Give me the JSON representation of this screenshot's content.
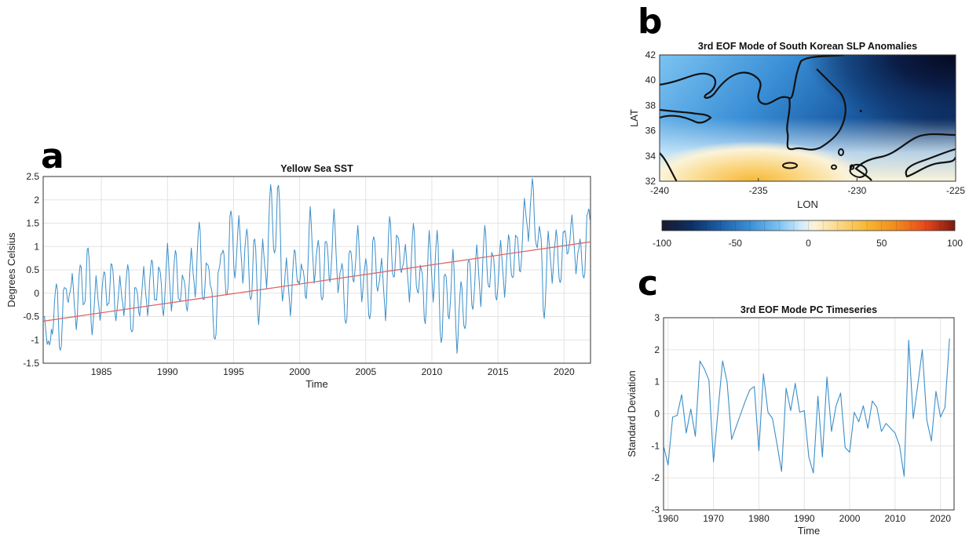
{
  "panels": {
    "a": "a",
    "b": "b",
    "c": "c"
  },
  "chart_data": [
    {
      "type": "line",
      "panel": "a",
      "title": "Yellow Sea SST",
      "xlabel": "Time",
      "ylabel": "Degrees Celsius",
      "xlim": [
        1980.6,
        2022.0
      ],
      "ylim": [
        -1.5,
        2.5
      ],
      "xticks": [
        1985,
        1990,
        1995,
        2000,
        2005,
        2010,
        2015,
        2020
      ],
      "yticks": [
        -1.5,
        -1,
        -0.5,
        0,
        0.5,
        1,
        1.5,
        2,
        2.5
      ],
      "grid": true,
      "colors": {
        "series": "#3b8fc9",
        "trend": "#e06666"
      },
      "trend": {
        "x": [
          1980.6,
          2022.0
        ],
        "y": [
          -0.6,
          1.1
        ]
      },
      "anchors": [
        [
          1980.6,
          -0.5
        ],
        [
          1981.0,
          -1.1
        ],
        [
          1981.3,
          -0.8
        ],
        [
          1981.6,
          0.2
        ],
        [
          1981.9,
          -1.3
        ],
        [
          1982.2,
          0.2
        ],
        [
          1982.5,
          -0.2
        ],
        [
          1982.8,
          0.35
        ],
        [
          1983.1,
          -0.7
        ],
        [
          1983.4,
          0.6
        ],
        [
          1983.7,
          -0.3
        ],
        [
          1984.0,
          1.05
        ],
        [
          1984.3,
          -0.9
        ],
        [
          1984.6,
          0.3
        ],
        [
          1984.9,
          -0.5
        ],
        [
          1985.2,
          0.45
        ],
        [
          1985.5,
          -0.3
        ],
        [
          1985.8,
          0.7
        ],
        [
          1986.1,
          -0.6
        ],
        [
          1986.4,
          0.3
        ],
        [
          1986.7,
          -0.4
        ],
        [
          1987.0,
          0.6
        ],
        [
          1987.3,
          -0.9
        ],
        [
          1987.6,
          0.2
        ],
        [
          1987.9,
          -0.5
        ],
        [
          1988.2,
          0.5
        ],
        [
          1988.5,
          -0.4
        ],
        [
          1988.8,
          0.7
        ],
        [
          1989.1,
          -0.2
        ],
        [
          1989.4,
          0.6
        ],
        [
          1989.7,
          -0.5
        ],
        [
          1990.0,
          1.0
        ],
        [
          1990.3,
          -0.3
        ],
        [
          1990.6,
          0.9
        ],
        [
          1990.9,
          -0.2
        ],
        [
          1991.2,
          0.4
        ],
        [
          1991.5,
          -0.4
        ],
        [
          1991.8,
          0.9
        ],
        [
          1992.1,
          0.0
        ],
        [
          1992.4,
          1.5
        ],
        [
          1992.7,
          -0.2
        ],
        [
          1993.0,
          0.7
        ],
        [
          1993.3,
          0.1
        ],
        [
          1993.6,
          -1.05
        ],
        [
          1993.9,
          0.6
        ],
        [
          1994.2,
          0.9
        ],
        [
          1994.5,
          -0.1
        ],
        [
          1994.8,
          1.85
        ],
        [
          1995.1,
          0.3
        ],
        [
          1995.4,
          1.6
        ],
        [
          1995.7,
          0.3
        ],
        [
          1996.0,
          1.35
        ],
        [
          1996.3,
          -0.2
        ],
        [
          1996.6,
          1.25
        ],
        [
          1996.9,
          -0.7
        ],
        [
          1997.2,
          1.1
        ],
        [
          1997.5,
          0.2
        ],
        [
          1997.8,
          2.3
        ],
        [
          1998.1,
          0.8
        ],
        [
          1998.4,
          2.4
        ],
        [
          1998.7,
          -0.2
        ],
        [
          1999.0,
          0.7
        ],
        [
          1999.3,
          -0.4
        ],
        [
          1999.6,
          0.9
        ],
        [
          1999.9,
          0.2
        ],
        [
          2000.2,
          0.6
        ],
        [
          2000.5,
          -0.15
        ],
        [
          2000.8,
          1.8
        ],
        [
          2001.1,
          0.3
        ],
        [
          2001.4,
          1.1
        ],
        [
          2001.7,
          -0.2
        ],
        [
          2002.0,
          1.2
        ],
        [
          2002.3,
          0.2
        ],
        [
          2002.6,
          1.75
        ],
        [
          2002.9,
          0.1
        ],
        [
          2003.2,
          0.6
        ],
        [
          2003.5,
          -0.7
        ],
        [
          2003.8,
          1.0
        ],
        [
          2004.1,
          0.2
        ],
        [
          2004.4,
          1.4
        ],
        [
          2004.7,
          -0.1
        ],
        [
          2005.0,
          0.7
        ],
        [
          2005.3,
          -0.6
        ],
        [
          2005.6,
          1.3
        ],
        [
          2005.9,
          0.0
        ],
        [
          2006.2,
          0.7
        ],
        [
          2006.5,
          -0.5
        ],
        [
          2006.8,
          1.6
        ],
        [
          2007.1,
          0.3
        ],
        [
          2007.4,
          1.3
        ],
        [
          2007.7,
          0.4
        ],
        [
          2008.0,
          1.0
        ],
        [
          2008.3,
          -0.1
        ],
        [
          2008.6,
          1.45
        ],
        [
          2008.9,
          0.0
        ],
        [
          2009.2,
          0.6
        ],
        [
          2009.5,
          -0.7
        ],
        [
          2009.8,
          1.3
        ],
        [
          2010.1,
          -0.1
        ],
        [
          2010.4,
          1.3
        ],
        [
          2010.7,
          -1.1
        ],
        [
          2011.0,
          0.5
        ],
        [
          2011.3,
          -0.6
        ],
        [
          2011.6,
          0.9
        ],
        [
          2011.9,
          -1.2
        ],
        [
          2012.2,
          0.2
        ],
        [
          2012.5,
          -0.8
        ],
        [
          2012.8,
          0.8
        ],
        [
          2013.1,
          -0.4
        ],
        [
          2013.4,
          1.0
        ],
        [
          2013.7,
          -0.2
        ],
        [
          2014.0,
          1.4
        ],
        [
          2014.3,
          0.1
        ],
        [
          2014.6,
          0.9
        ],
        [
          2014.9,
          -0.2
        ],
        [
          2015.2,
          1.1
        ],
        [
          2015.5,
          0.0
        ],
        [
          2015.8,
          1.2
        ],
        [
          2016.1,
          0.3
        ],
        [
          2016.4,
          1.3
        ],
        [
          2016.7,
          0.4
        ],
        [
          2017.0,
          2.0
        ],
        [
          2017.3,
          1.2
        ],
        [
          2017.6,
          2.4
        ],
        [
          2017.9,
          1.0
        ],
        [
          2018.2,
          1.4
        ],
        [
          2018.5,
          -0.6
        ],
        [
          2018.8,
          1.3
        ],
        [
          2019.1,
          0.3
        ],
        [
          2019.4,
          1.3
        ],
        [
          2019.7,
          0.2
        ],
        [
          2020.0,
          1.4
        ],
        [
          2020.3,
          0.8
        ],
        [
          2020.6,
          1.65
        ],
        [
          2020.9,
          0.5
        ],
        [
          2021.2,
          1.1
        ],
        [
          2021.5,
          0.3
        ],
        [
          2021.8,
          1.8
        ],
        [
          2022.0,
          1.6
        ]
      ]
    },
    {
      "type": "heatmap",
      "panel": "b",
      "title": "3rd EOF Mode of South Korean SLP Anomalies",
      "xlabel": "LON",
      "ylabel": "LAT",
      "xlim": [
        -240,
        -225
      ],
      "ylim": [
        32,
        42
      ],
      "xticks": [
        -240,
        -235,
        -230,
        -225
      ],
      "yticks": [
        32,
        34,
        36,
        38,
        40,
        42
      ],
      "colorbar": {
        "min": -100,
        "max": 100,
        "ticks": [
          -100,
          -50,
          0,
          50,
          100
        ]
      },
      "colorscale": [
        [
          -100,
          "#1a1a2e"
        ],
        [
          -80,
          "#0d2f63"
        ],
        [
          -60,
          "#1c5fa8"
        ],
        [
          -40,
          "#3a8fd6"
        ],
        [
          -20,
          "#7cc3f2"
        ],
        [
          -5,
          "#d6eefc"
        ],
        [
          5,
          "#fbf3d8"
        ],
        [
          20,
          "#fbd98a"
        ],
        [
          40,
          "#f7b731"
        ],
        [
          60,
          "#f28a1c"
        ],
        [
          80,
          "#e8481a"
        ],
        [
          100,
          "#7a1a10"
        ]
      ]
    },
    {
      "type": "line",
      "panel": "c",
      "title": "3rd EOF Mode PC Timeseries",
      "xlabel": "Time",
      "ylabel": "Standard Deviation",
      "xlim": [
        1959,
        2023
      ],
      "ylim": [
        -3,
        3
      ],
      "xticks": [
        1960,
        1970,
        1980,
        1990,
        2000,
        2010,
        2020
      ],
      "yticks": [
        -3,
        -2,
        -1,
        0,
        1,
        2,
        3
      ],
      "grid": true,
      "colors": {
        "series": "#3b8fc9"
      },
      "x": [
        1959,
        1960,
        1961,
        1962,
        1963,
        1964,
        1965,
        1966,
        1967,
        1968,
        1969,
        1970,
        1971,
        1972,
        1973,
        1974,
        1975,
        1976,
        1977,
        1978,
        1979,
        1980,
        1981,
        1982,
        1983,
        1984,
        1985,
        1986,
        1987,
        1988,
        1989,
        1990,
        1991,
        1992,
        1993,
        1994,
        1995,
        1996,
        1997,
        1998,
        1999,
        2000,
        2001,
        2002,
        2003,
        2004,
        2005,
        2006,
        2007,
        2008,
        2009,
        2010,
        2011,
        2012,
        2013,
        2014,
        2015,
        2016,
        2017,
        2018,
        2019,
        2020,
        2021,
        2022
      ],
      "y": [
        -1.0,
        -1.6,
        -0.1,
        -0.05,
        0.6,
        -0.6,
        0.15,
        -0.7,
        1.65,
        1.4,
        1.05,
        -1.5,
        0.1,
        1.65,
        1.0,
        -0.8,
        -0.4,
        0.0,
        0.4,
        0.75,
        0.85,
        -1.15,
        1.25,
        0.05,
        -0.15,
        -0.95,
        -1.8,
        0.8,
        0.1,
        0.95,
        0.05,
        0.1,
        -1.35,
        -1.85,
        0.55,
        -1.35,
        1.15,
        -0.55,
        0.25,
        0.65,
        -1.05,
        -1.2,
        0.05,
        -0.25,
        0.25,
        -0.45,
        0.4,
        0.2,
        -0.55,
        -0.3,
        -0.45,
        -0.6,
        -1.0,
        -1.95,
        2.3,
        -0.15,
        0.9,
        2.0,
        -0.2,
        -0.85,
        0.7,
        -0.1,
        0.2,
        2.35
      ]
    }
  ]
}
